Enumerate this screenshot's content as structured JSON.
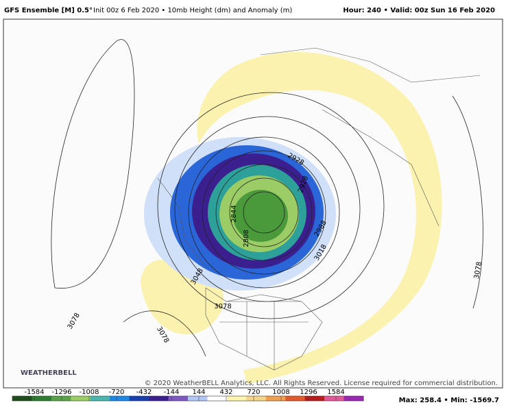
{
  "header": {
    "title": "GFS Ensemble [M] 0.5°",
    "subtitle": "Init 00z 6 Feb 2020 • 10mb Height (dm) and Anomaly (m)",
    "valid": "Hour: 240 • Valid: 00z Sun 16 Feb 2020"
  },
  "map": {
    "contour_labels": [
      "3078",
      "3078",
      "3078",
      "3078",
      "3048",
      "2844",
      "2928",
      "2988",
      "2928",
      "3018",
      "2808"
    ],
    "copyright": "© 2020 WeatherBELL Analytics, LLC. All Rights Reserved. License required for commercial distribution.",
    "logo": "WEATHERBELL"
  },
  "colorbar": {
    "ticks": [
      -1584,
      -1296,
      -1008,
      -720,
      -432,
      -144,
      144,
      432,
      720,
      1008,
      1296,
      1584
    ],
    "colors": [
      "#1f4d1f",
      "#2e7d32",
      "#5aa34a",
      "#9ccc65",
      "#4db6ac",
      "#1e88e5",
      "#1a3fb0",
      "#3b1f8f",
      "#7e57c2",
      "#b3c7f7",
      "#ffffff",
      "#fff5b0",
      "#f5d58a",
      "#f0a050",
      "#e05a2b",
      "#b71c1c",
      "#e05a9a",
      "#9c27b0"
    ],
    "max_min": "Max: 258.4 • Min: -1569.7"
  }
}
